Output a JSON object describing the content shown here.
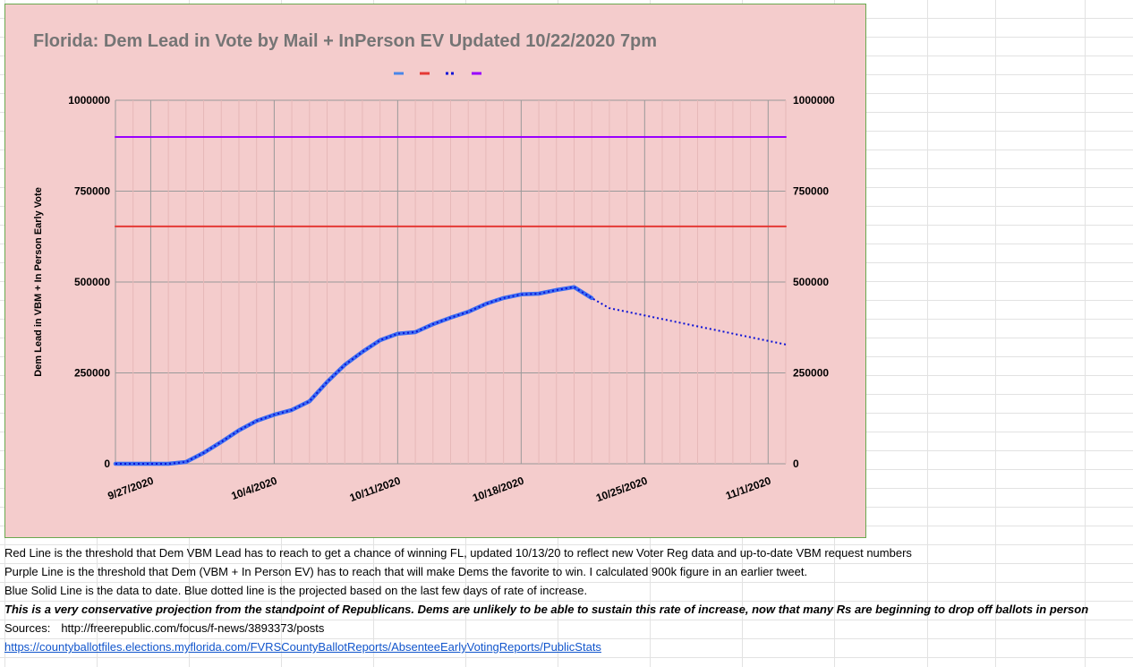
{
  "colors": {
    "chart_background": "#f4cccc",
    "title": "#757575",
    "red_threshold": "#e53935",
    "purple_threshold": "#9900ff",
    "blue_actual": "#3d6df2",
    "blue_projection": "#0b12d6",
    "legend_blue": "#4a86e8"
  },
  "chart_data": {
    "type": "line",
    "title": "Florida: Dem Lead in Vote by Mail + InPerson EV Updated 10/22/2020 7pm",
    "ylabel": "Dem Lead in VBM + In Person Early Vote",
    "xlabel": "",
    "ylim": [
      0,
      1000000
    ],
    "xlim": [
      "2020-09-25",
      "2020-11-02"
    ],
    "grid": true,
    "legend": {
      "position": "top",
      "entries": [
        "",
        "",
        "",
        ""
      ]
    },
    "y_ticks": [
      "0",
      "250000",
      "500000",
      "750000",
      "1000000"
    ],
    "x_ticks": [
      "9/27/2020",
      "10/4/2020",
      "10/11/2020",
      "10/18/2020",
      "10/25/2020",
      "11/1/2020"
    ],
    "series": [
      {
        "style": "solid",
        "color": "#3d6df2",
        "x": [
          "2020-09-25",
          "2020-09-26",
          "2020-09-27",
          "2020-09-28",
          "2020-09-29",
          "2020-09-30",
          "2020-10-01",
          "2020-10-02",
          "2020-10-03",
          "2020-10-04",
          "2020-10-05",
          "2020-10-06",
          "2020-10-07",
          "2020-10-08",
          "2020-10-09",
          "2020-10-10",
          "2020-10-11",
          "2020-10-12",
          "2020-10-13",
          "2020-10-14",
          "2020-10-15",
          "2020-10-16",
          "2020-10-17",
          "2020-10-18",
          "2020-10-19",
          "2020-10-20",
          "2020-10-21",
          "2020-10-22"
        ],
        "values": [
          0,
          0,
          0,
          0,
          5000,
          30000,
          60000,
          92000,
          118000,
          135000,
          148000,
          172000,
          225000,
          272000,
          308000,
          340000,
          358000,
          362000,
          384000,
          402000,
          418000,
          440000,
          456000,
          466000,
          468000,
          478000,
          486000,
          456000
        ]
      },
      {
        "style": "dotted",
        "color": "#0b12d6",
        "x": [
          "2020-09-25",
          "2020-09-26",
          "2020-09-27",
          "2020-09-28",
          "2020-09-29",
          "2020-09-30",
          "2020-10-01",
          "2020-10-02",
          "2020-10-03",
          "2020-10-04",
          "2020-10-05",
          "2020-10-06",
          "2020-10-07",
          "2020-10-08",
          "2020-10-09",
          "2020-10-10",
          "2020-10-11",
          "2020-10-12",
          "2020-10-13",
          "2020-10-14",
          "2020-10-15",
          "2020-10-16",
          "2020-10-17",
          "2020-10-18",
          "2020-10-19",
          "2020-10-20",
          "2020-10-21",
          "2020-10-22",
          "2020-10-23",
          "2020-11-02"
        ],
        "values": [
          0,
          0,
          0,
          0,
          5000,
          30000,
          60000,
          92000,
          118000,
          135000,
          148000,
          172000,
          225000,
          272000,
          308000,
          340000,
          358000,
          362000,
          384000,
          402000,
          418000,
          440000,
          456000,
          466000,
          468000,
          478000,
          486000,
          456000,
          428000,
          328000
        ]
      },
      {
        "style": "solid",
        "color": "#e53935",
        "x": [
          "2020-09-25",
          "2020-11-02"
        ],
        "values": [
          653000,
          653000
        ]
      },
      {
        "style": "solid",
        "color": "#9900ff",
        "x": [
          "2020-09-25",
          "2020-11-02"
        ],
        "values": [
          899000,
          899000
        ]
      }
    ]
  },
  "notes": [
    "Red Line is the threshold that Dem VBM Lead has to reach to get a chance of winning FL, updated 10/13/20 to reflect new Voter Reg data and up-to-date VBM request numbers",
    "Purple Line is the threshold that Dem (VBM + In Person EV) has to reach that will make Dems the favorite to win. I calculated 900k figure in an earlier tweet.",
    "Blue Solid Line is the data to date. Blue dotted line is the projected based on the last few days of rate of increase.",
    "This is a very conservative projection from the standpoint of Republicans.  Dems are unlikely to be able to sustain this rate of increase, now that many Rs are beginning to drop off ballots in person"
  ],
  "sources": {
    "label": "Sources:",
    "url_1": "http://freerepublic.com/focus/f-news/3893373/posts",
    "url_2": "https://countyballotfiles.elections.myflorida.com/FVRSCountyBallotReports/AbsenteeEarlyVotingReports/PublicStats"
  }
}
